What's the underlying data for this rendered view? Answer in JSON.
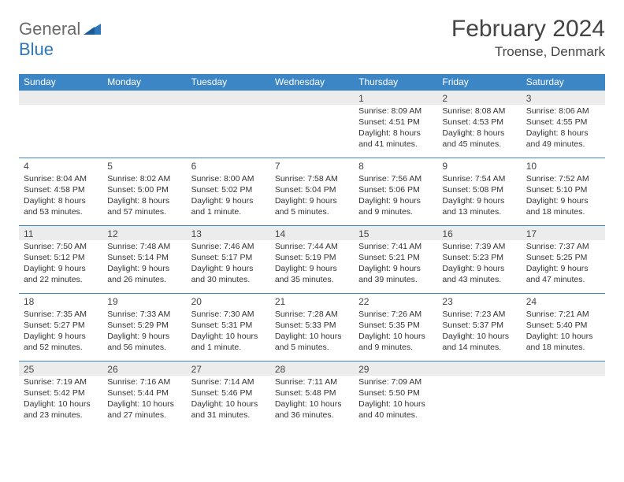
{
  "brand": {
    "general": "General",
    "blue": "Blue"
  },
  "header": {
    "title": "February 2024",
    "location": "Troense, Denmark"
  },
  "colors": {
    "header_bg": "#3c86c6",
    "header_text": "#ffffff",
    "row_border": "#3c86c6",
    "alt_row_bg": "#ececec",
    "title_color": "#444444",
    "body_text": "#333333",
    "logo_blue": "#2f77b8",
    "logo_gray": "#6a6a6a"
  },
  "weekdays": [
    "Sunday",
    "Monday",
    "Tuesday",
    "Wednesday",
    "Thursday",
    "Friday",
    "Saturday"
  ],
  "layout": {
    "columns": 7,
    "rows": 5
  },
  "grid": [
    [
      null,
      null,
      null,
      null,
      {
        "n": "1",
        "sr": "Sunrise: 8:09 AM",
        "ss": "Sunset: 4:51 PM",
        "d1": "Daylight: 8 hours",
        "d2": "and 41 minutes."
      },
      {
        "n": "2",
        "sr": "Sunrise: 8:08 AM",
        "ss": "Sunset: 4:53 PM",
        "d1": "Daylight: 8 hours",
        "d2": "and 45 minutes."
      },
      {
        "n": "3",
        "sr": "Sunrise: 8:06 AM",
        "ss": "Sunset: 4:55 PM",
        "d1": "Daylight: 8 hours",
        "d2": "and 49 minutes."
      }
    ],
    [
      {
        "n": "4",
        "sr": "Sunrise: 8:04 AM",
        "ss": "Sunset: 4:58 PM",
        "d1": "Daylight: 8 hours",
        "d2": "and 53 minutes."
      },
      {
        "n": "5",
        "sr": "Sunrise: 8:02 AM",
        "ss": "Sunset: 5:00 PM",
        "d1": "Daylight: 8 hours",
        "d2": "and 57 minutes."
      },
      {
        "n": "6",
        "sr": "Sunrise: 8:00 AM",
        "ss": "Sunset: 5:02 PM",
        "d1": "Daylight: 9 hours",
        "d2": "and 1 minute."
      },
      {
        "n": "7",
        "sr": "Sunrise: 7:58 AM",
        "ss": "Sunset: 5:04 PM",
        "d1": "Daylight: 9 hours",
        "d2": "and 5 minutes."
      },
      {
        "n": "8",
        "sr": "Sunrise: 7:56 AM",
        "ss": "Sunset: 5:06 PM",
        "d1": "Daylight: 9 hours",
        "d2": "and 9 minutes."
      },
      {
        "n": "9",
        "sr": "Sunrise: 7:54 AM",
        "ss": "Sunset: 5:08 PM",
        "d1": "Daylight: 9 hours",
        "d2": "and 13 minutes."
      },
      {
        "n": "10",
        "sr": "Sunrise: 7:52 AM",
        "ss": "Sunset: 5:10 PM",
        "d1": "Daylight: 9 hours",
        "d2": "and 18 minutes."
      }
    ],
    [
      {
        "n": "11",
        "sr": "Sunrise: 7:50 AM",
        "ss": "Sunset: 5:12 PM",
        "d1": "Daylight: 9 hours",
        "d2": "and 22 minutes."
      },
      {
        "n": "12",
        "sr": "Sunrise: 7:48 AM",
        "ss": "Sunset: 5:14 PM",
        "d1": "Daylight: 9 hours",
        "d2": "and 26 minutes."
      },
      {
        "n": "13",
        "sr": "Sunrise: 7:46 AM",
        "ss": "Sunset: 5:17 PM",
        "d1": "Daylight: 9 hours",
        "d2": "and 30 minutes."
      },
      {
        "n": "14",
        "sr": "Sunrise: 7:44 AM",
        "ss": "Sunset: 5:19 PM",
        "d1": "Daylight: 9 hours",
        "d2": "and 35 minutes."
      },
      {
        "n": "15",
        "sr": "Sunrise: 7:41 AM",
        "ss": "Sunset: 5:21 PM",
        "d1": "Daylight: 9 hours",
        "d2": "and 39 minutes."
      },
      {
        "n": "16",
        "sr": "Sunrise: 7:39 AM",
        "ss": "Sunset: 5:23 PM",
        "d1": "Daylight: 9 hours",
        "d2": "and 43 minutes."
      },
      {
        "n": "17",
        "sr": "Sunrise: 7:37 AM",
        "ss": "Sunset: 5:25 PM",
        "d1": "Daylight: 9 hours",
        "d2": "and 47 minutes."
      }
    ],
    [
      {
        "n": "18",
        "sr": "Sunrise: 7:35 AM",
        "ss": "Sunset: 5:27 PM",
        "d1": "Daylight: 9 hours",
        "d2": "and 52 minutes."
      },
      {
        "n": "19",
        "sr": "Sunrise: 7:33 AM",
        "ss": "Sunset: 5:29 PM",
        "d1": "Daylight: 9 hours",
        "d2": "and 56 minutes."
      },
      {
        "n": "20",
        "sr": "Sunrise: 7:30 AM",
        "ss": "Sunset: 5:31 PM",
        "d1": "Daylight: 10 hours",
        "d2": "and 1 minute."
      },
      {
        "n": "21",
        "sr": "Sunrise: 7:28 AM",
        "ss": "Sunset: 5:33 PM",
        "d1": "Daylight: 10 hours",
        "d2": "and 5 minutes."
      },
      {
        "n": "22",
        "sr": "Sunrise: 7:26 AM",
        "ss": "Sunset: 5:35 PM",
        "d1": "Daylight: 10 hours",
        "d2": "and 9 minutes."
      },
      {
        "n": "23",
        "sr": "Sunrise: 7:23 AM",
        "ss": "Sunset: 5:37 PM",
        "d1": "Daylight: 10 hours",
        "d2": "and 14 minutes."
      },
      {
        "n": "24",
        "sr": "Sunrise: 7:21 AM",
        "ss": "Sunset: 5:40 PM",
        "d1": "Daylight: 10 hours",
        "d2": "and 18 minutes."
      }
    ],
    [
      {
        "n": "25",
        "sr": "Sunrise: 7:19 AM",
        "ss": "Sunset: 5:42 PM",
        "d1": "Daylight: 10 hours",
        "d2": "and 23 minutes."
      },
      {
        "n": "26",
        "sr": "Sunrise: 7:16 AM",
        "ss": "Sunset: 5:44 PM",
        "d1": "Daylight: 10 hours",
        "d2": "and 27 minutes."
      },
      {
        "n": "27",
        "sr": "Sunrise: 7:14 AM",
        "ss": "Sunset: 5:46 PM",
        "d1": "Daylight: 10 hours",
        "d2": "and 31 minutes."
      },
      {
        "n": "28",
        "sr": "Sunrise: 7:11 AM",
        "ss": "Sunset: 5:48 PM",
        "d1": "Daylight: 10 hours",
        "d2": "and 36 minutes."
      },
      {
        "n": "29",
        "sr": "Sunrise: 7:09 AM",
        "ss": "Sunset: 5:50 PM",
        "d1": "Daylight: 10 hours",
        "d2": "and 40 minutes."
      },
      null,
      null
    ]
  ]
}
